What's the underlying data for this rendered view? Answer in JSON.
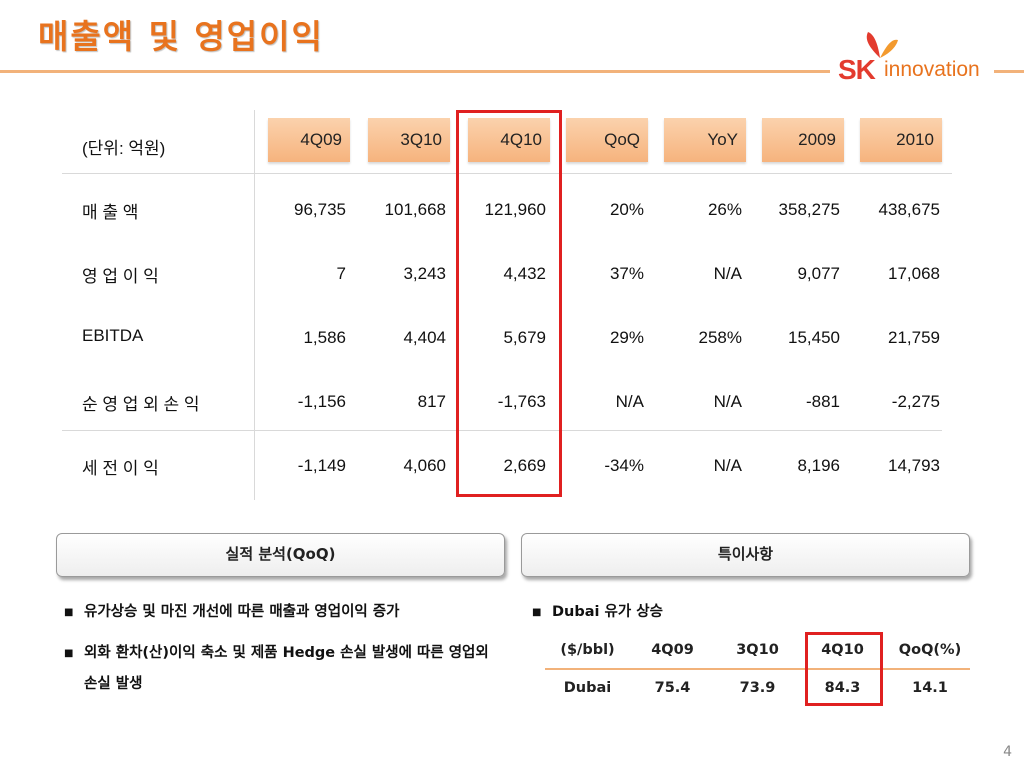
{
  "title": "매출액 및 영업이익",
  "logo": {
    "sk": "SK",
    "innovation": "innovation"
  },
  "colors": {
    "accent": "#e8731e",
    "highlight": "#e02020",
    "header_fill": "#f6b37d"
  },
  "table": {
    "unit_label": "(단위: 억원)",
    "columns": [
      "4Q09",
      "3Q10",
      "4Q10",
      "QoQ",
      "YoY",
      "2009",
      "2010"
    ],
    "rows": [
      {
        "label": "매 출 액",
        "values": [
          "96,735",
          "101,668",
          "121,960",
          "20%",
          "26%",
          "358,275",
          "438,675"
        ]
      },
      {
        "label": "영 업 이 익",
        "values": [
          "7",
          "3,243",
          "4,432",
          "37%",
          "N/A",
          "9,077",
          "17,068"
        ]
      },
      {
        "label": "EBITDA",
        "values": [
          "1,586",
          "4,404",
          "5,679",
          "29%",
          "258%",
          "15,450",
          "21,759"
        ]
      },
      {
        "label": "순 영 업 외 손 익",
        "values": [
          "-1,156",
          "817",
          "-1,763",
          "N/A",
          "N/A",
          "-881",
          "-2,275"
        ]
      },
      {
        "label": "세 전 이 익",
        "values": [
          "-1,149",
          "4,060",
          "2,669",
          "-34%",
          "N/A",
          "8,196",
          "14,793"
        ]
      }
    ]
  },
  "panels": {
    "left": "실적 분석(QoQ)",
    "right": "특이사항"
  },
  "left_bullets": [
    "유가상승 및 마진 개선에 따른 매출과 영업이익 증가",
    "외화 환차(산)이익 축소 및 제품 Hedge 손실 발생에 따른 영업외손실 발생"
  ],
  "right_bullet": "Dubai 유가 상승",
  "dubai_table": {
    "headers": [
      "($/bbl)",
      "4Q09",
      "3Q10",
      "4Q10",
      "QoQ(%)"
    ],
    "row": [
      "Dubai",
      "75.4",
      "73.9",
      "84.3",
      "14.1"
    ]
  },
  "page_number": "4"
}
